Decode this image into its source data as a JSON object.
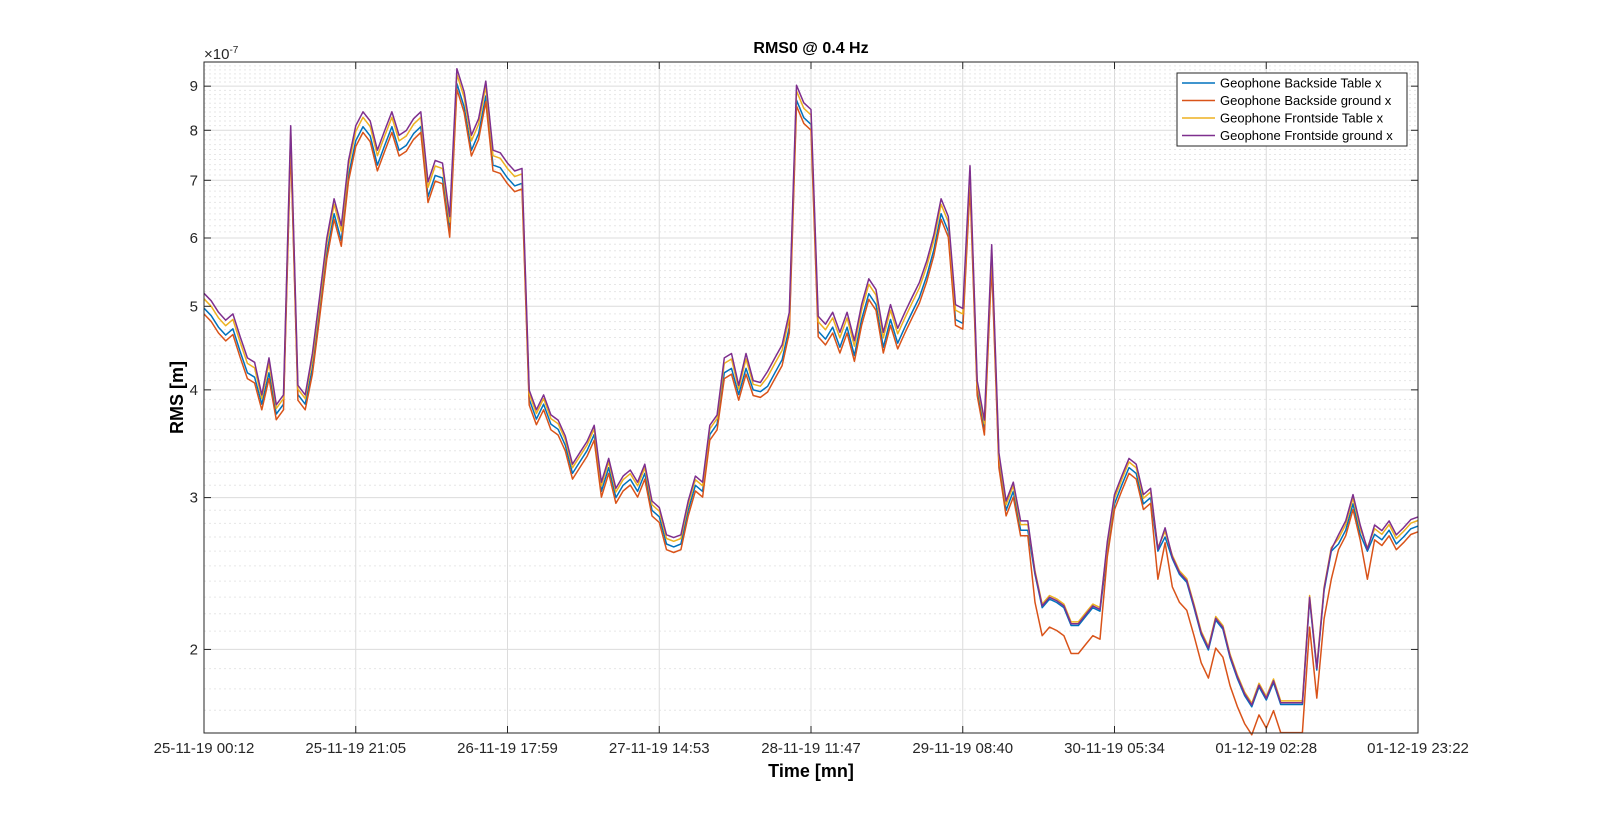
{
  "chart_data": {
    "type": "line",
    "title": "RMS0 @ 0.4 Hz",
    "xlabel": "Time [mn]",
    "ylabel": "RMS [m]",
    "y_scale": "log",
    "y_exponent_label": "×10",
    "y_exponent_power": "-7",
    "ylim": [
      1.6e-07,
      9.6e-07
    ],
    "grid": true,
    "legend_position": "top-right",
    "x_ticks": [
      {
        "i": 0,
        "label": "25-11-19 00:12"
      },
      {
        "i": 21,
        "label": "25-11-19 21:05"
      },
      {
        "i": 42,
        "label": "26-11-19 17:59"
      },
      {
        "i": 63,
        "label": "27-11-19 14:53"
      },
      {
        "i": 84,
        "label": "28-11-19 11:47"
      },
      {
        "i": 105,
        "label": "29-11-19 08:40"
      },
      {
        "i": 126,
        "label": "30-11-19 05:34"
      },
      {
        "i": 147,
        "label": "01-12-19 02:28"
      },
      {
        "i": 168,
        "label": "01-12-19 23:22"
      }
    ],
    "y_ticks": [
      {
        "value": 2e-07,
        "label": "2"
      },
      {
        "value": 3e-07,
        "label": "3"
      },
      {
        "value": 4e-07,
        "label": "4"
      },
      {
        "value": 5e-07,
        "label": "5"
      },
      {
        "value": 6e-07,
        "label": "6"
      },
      {
        "value": 7e-07,
        "label": "7"
      },
      {
        "value": 8e-07,
        "label": "8"
      },
      {
        "value": 9e-07,
        "label": "9"
      }
    ],
    "base_values_e7": [
      5.05,
      4.95,
      4.8,
      4.7,
      4.78,
      4.5,
      4.25,
      4.2,
      3.85,
      4.25,
      3.75,
      3.85,
      7.9,
      3.95,
      3.85,
      4.3,
      5.0,
      5.85,
      6.5,
      6.05,
      7.2,
      7.9,
      8.2,
      8.0,
      7.4,
      7.8,
      8.2,
      7.7,
      7.8,
      8.05,
      8.2,
      6.8,
      7.2,
      7.15,
      6.2,
      9.2,
      8.65,
      7.7,
      8.05,
      8.9,
      7.4,
      7.35,
      7.15,
      7.0,
      7.05,
      3.9,
      3.7,
      3.85,
      3.65,
      3.6,
      3.45,
      3.2,
      3.3,
      3.4,
      3.55,
      3.05,
      3.25,
      3.0,
      3.1,
      3.15,
      3.05,
      3.2,
      2.9,
      2.85,
      2.65,
      2.63,
      2.65,
      2.9,
      3.1,
      3.05,
      3.55,
      3.65,
      4.25,
      4.3,
      3.95,
      4.3,
      4.0,
      3.98,
      4.1,
      4.25,
      4.4,
      4.8,
      8.8,
      8.4,
      8.25,
      4.75,
      4.65,
      4.8,
      4.55,
      4.8,
      4.45,
      4.9,
      5.25,
      5.1,
      4.55,
      4.9,
      4.6,
      4.8,
      5.0,
      5.2,
      5.5,
      5.9,
      6.5,
      6.2,
      4.9,
      4.85,
      7.1,
      4.0,
      3.6,
      5.75,
      3.3,
      2.9,
      3.05,
      2.75,
      2.75,
      2.35,
      2.15,
      2.2,
      2.18,
      2.15,
      2.05,
      2.05,
      2.1,
      2.15,
      2.13,
      2.6,
      2.95,
      3.1,
      3.25,
      3.2,
      2.95,
      3.0,
      2.5,
      2.7,
      2.45,
      2.35,
      2.3,
      2.15,
      2.0,
      1.92,
      2.08,
      2.03,
      1.88,
      1.78,
      1.7,
      1.65,
      1.74,
      1.68,
      1.76,
      1.66,
      1.66,
      1.66,
      1.66,
      2.2,
      1.82,
      2.25,
      2.5,
      2.65,
      2.75,
      2.95,
      2.72,
      2.5,
      2.72,
      2.68,
      2.75,
      2.65,
      2.7,
      2.76,
      2.78
    ],
    "series": [
      {
        "name": "Geophone Backside Table x",
        "color": "#0072BD",
        "scale_rule": "backside-table"
      },
      {
        "name": "Geophone Backside ground x",
        "color": "#D95319",
        "scale_rule": "backside-ground"
      },
      {
        "name": "Geophone Frontside Table x",
        "color": "#EDB120",
        "scale_rule": "frontside-table"
      },
      {
        "name": "Geophone Frontside ground x",
        "color": "#7E2F8E",
        "scale_rule": "frontside-ground"
      }
    ]
  }
}
